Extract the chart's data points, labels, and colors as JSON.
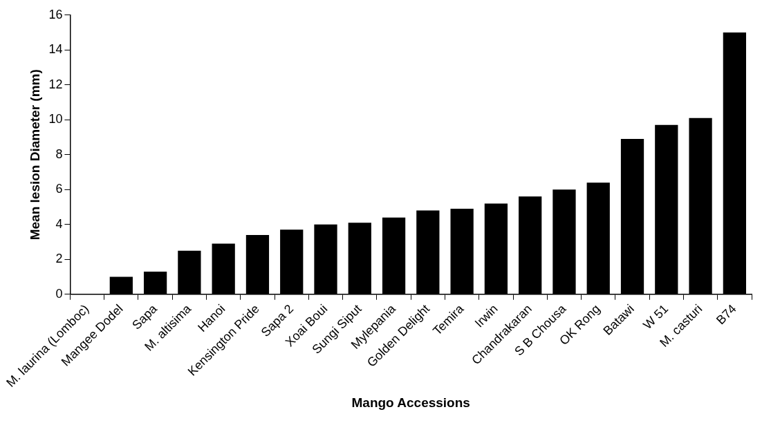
{
  "chart_data": {
    "type": "bar",
    "xlabel": "Mango Accessions",
    "ylabel": "Mean lesion Diameter (mm)",
    "categories": [
      "M. laurina (Lomboc)",
      "Mangee Dodel",
      "Sapa",
      "M. altisima",
      "Hanoi",
      "Kensington Pride",
      "Sapa 2",
      "Xoai Boui",
      "Sungi Siput",
      "Mylepania",
      "Golden Delight",
      "Temira",
      "Irwin",
      "Chandrakaran",
      "S B Chousa",
      "OK Rong",
      "Batawi",
      "W 51",
      "M. casturi",
      "B74"
    ],
    "values": [
      0,
      1.0,
      1.3,
      2.5,
      2.9,
      3.4,
      3.7,
      4.0,
      4.1,
      4.4,
      4.8,
      4.9,
      5.2,
      5.6,
      6.0,
      6.4,
      8.9,
      9.7,
      10.1,
      15.0
    ],
    "color": "#000000",
    "ylim": [
      0,
      16
    ],
    "yticks": [
      0,
      2,
      4,
      6,
      8,
      10,
      12,
      14,
      16
    ],
    "grid": false,
    "legend": false
  }
}
